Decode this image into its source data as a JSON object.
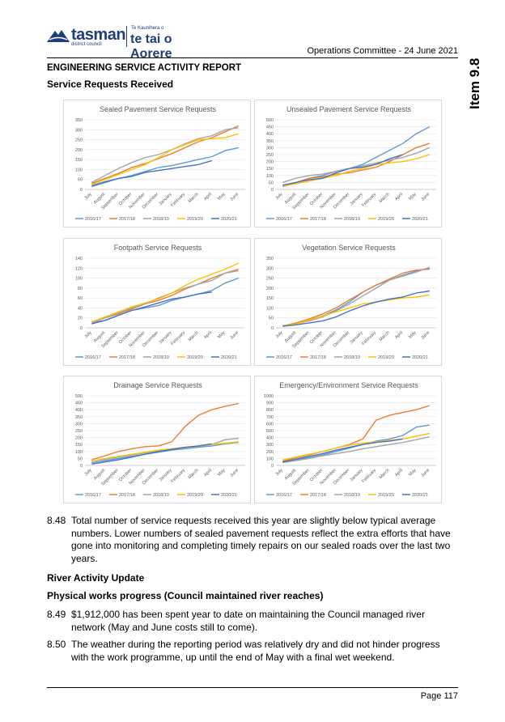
{
  "header": {
    "logo_name": "tasman",
    "logo_subtitle": "district council",
    "logo_maori_small": "Te Kaunihera o",
    "logo_maori": "te tai o Aorere",
    "meeting": "Operations Committee - 24 June 2021",
    "item": "Item 9.8"
  },
  "report_title": "ENGINEERING SERVICE ACTIVITY REPORT",
  "section_title": "Service Requests Received",
  "series_colors": {
    "2016/17": "#5b9bd5",
    "2017/18": "#ed7d31",
    "2018/19": "#a5a5a5",
    "2019/20": "#ffc000",
    "2020/21": "#4472c4"
  },
  "chart_data": [
    {
      "type": "line",
      "title": "Sealed Pavement Service Requests",
      "categories": [
        "July",
        "August",
        "September",
        "October",
        "November",
        "December",
        "January",
        "February",
        "March",
        "April",
        "May",
        "June"
      ],
      "ylim": [
        0,
        350
      ],
      "yticks": [
        0,
        50,
        100,
        150,
        200,
        250,
        300,
        350
      ],
      "series": [
        {
          "name": "2016/17",
          "values": [
            20,
            40,
            55,
            70,
            90,
            110,
            120,
            135,
            150,
            165,
            195,
            210
          ]
        },
        {
          "name": "2017/18",
          "values": [
            30,
            55,
            80,
            110,
            130,
            155,
            180,
            210,
            240,
            260,
            290,
            320
          ]
        },
        {
          "name": "2018/19",
          "values": [
            35,
            70,
            105,
            135,
            160,
            175,
            200,
            230,
            255,
            270,
            300,
            310
          ]
        },
        {
          "name": "2019/20",
          "values": [
            25,
            50,
            75,
            100,
            125,
            160,
            200,
            225,
            250,
            255,
            260,
            280
          ]
        },
        {
          "name": "2020/21",
          "values": [
            15,
            35,
            55,
            65,
            85,
            95,
            105,
            115,
            125,
            145,
            null,
            null
          ]
        }
      ]
    },
    {
      "type": "line",
      "title": "Unsealed Pavement Service Requests",
      "categories": [
        "July",
        "August",
        "September",
        "October",
        "November",
        "December",
        "January",
        "February",
        "March",
        "April",
        "May",
        "June"
      ],
      "ylim": [
        0,
        500
      ],
      "yticks": [
        0,
        50,
        100,
        150,
        200,
        250,
        300,
        350,
        400,
        450,
        500
      ],
      "series": [
        {
          "name": "2016/17",
          "values": [
            30,
            50,
            80,
            100,
            130,
            150,
            180,
            230,
            280,
            330,
            400,
            450
          ]
        },
        {
          "name": "2017/18",
          "values": [
            20,
            50,
            80,
            90,
            110,
            120,
            140,
            160,
            200,
            250,
            300,
            330
          ]
        },
        {
          "name": "2018/19",
          "values": [
            50,
            80,
            100,
            110,
            130,
            150,
            170,
            190,
            210,
            230,
            260,
            300
          ]
        },
        {
          "name": "2019/20",
          "values": [
            25,
            40,
            60,
            80,
            100,
            130,
            150,
            180,
            190,
            200,
            220,
            250
          ]
        },
        {
          "name": "2020/21",
          "values": [
            30,
            50,
            70,
            80,
            120,
            150,
            160,
            180,
            220,
            250,
            null,
            null
          ]
        }
      ]
    },
    {
      "type": "line",
      "title": "Footpath Service Requests",
      "categories": [
        "July",
        "August",
        "September",
        "October",
        "November",
        "December",
        "January",
        "February",
        "March",
        "April",
        "May",
        "June"
      ],
      "ylim": [
        0,
        140
      ],
      "yticks": [
        0,
        20,
        40,
        60,
        80,
        100,
        120,
        140
      ],
      "series": [
        {
          "name": "2016/17",
          "values": [
            10,
            15,
            25,
            35,
            40,
            45,
            55,
            62,
            68,
            75,
            90,
            100
          ]
        },
        {
          "name": "2017/18",
          "values": [
            12,
            20,
            28,
            38,
            48,
            55,
            65,
            78,
            88,
            100,
            110,
            118
          ]
        },
        {
          "name": "2018/19",
          "values": [
            10,
            20,
            30,
            40,
            48,
            60,
            70,
            80,
            88,
            95,
            110,
            115
          ]
        },
        {
          "name": "2019/20",
          "values": [
            12,
            22,
            32,
            42,
            50,
            58,
            70,
            85,
            98,
            108,
            118,
            130
          ]
        },
        {
          "name": "2020/21",
          "values": [
            8,
            15,
            25,
            35,
            42,
            50,
            58,
            62,
            68,
            72,
            null,
            null
          ]
        }
      ]
    },
    {
      "type": "line",
      "title": "Vegetation Service Requests",
      "categories": [
        "July",
        "August",
        "September",
        "October",
        "November",
        "December",
        "January",
        "February",
        "March",
        "April",
        "May",
        "June"
      ],
      "ylim": [
        0,
        350
      ],
      "yticks": [
        0,
        50,
        100,
        150,
        200,
        250,
        300,
        350
      ],
      "series": [
        {
          "name": "2016/17",
          "values": [
            10,
            20,
            40,
            60,
            90,
            130,
            180,
            215,
            240,
            265,
            285,
            300
          ]
        },
        {
          "name": "2017/18",
          "values": [
            10,
            25,
            45,
            70,
            100,
            140,
            180,
            215,
            245,
            275,
            290,
            295
          ]
        },
        {
          "name": "2018/19",
          "values": [
            10,
            20,
            35,
            55,
            85,
            120,
            160,
            200,
            240,
            260,
            280,
            305
          ]
        },
        {
          "name": "2019/20",
          "values": [
            10,
            20,
            40,
            60,
            80,
            100,
            120,
            130,
            140,
            150,
            155,
            165
          ]
        },
        {
          "name": "2020/21",
          "values": [
            8,
            15,
            25,
            35,
            55,
            85,
            110,
            130,
            145,
            155,
            175,
            185
          ]
        }
      ]
    },
    {
      "type": "line",
      "title": "Drainage Service Requests",
      "categories": [
        "July",
        "August",
        "September",
        "October",
        "November",
        "December",
        "January",
        "February",
        "March",
        "April",
        "May",
        "June"
      ],
      "ylim": [
        0,
        500
      ],
      "yticks": [
        0,
        50,
        100,
        150,
        200,
        250,
        300,
        350,
        400,
        450,
        500
      ],
      "series": [
        {
          "name": "2016/17",
          "values": [
            20,
            35,
            50,
            65,
            80,
            95,
            110,
            120,
            130,
            140,
            155,
            165
          ]
        },
        {
          "name": "2017/18",
          "values": [
            40,
            70,
            100,
            120,
            135,
            140,
            170,
            280,
            360,
            400,
            425,
            445
          ]
        },
        {
          "name": "2018/19",
          "values": [
            30,
            45,
            60,
            75,
            90,
            105,
            115,
            125,
            135,
            150,
            185,
            195
          ]
        },
        {
          "name": "2019/20",
          "values": [
            30,
            50,
            65,
            80,
            95,
            110,
            120,
            130,
            140,
            150,
            160,
            170
          ]
        },
        {
          "name": "2020/21",
          "values": [
            10,
            25,
            40,
            60,
            80,
            100,
            115,
            130,
            140,
            155,
            null,
            null
          ]
        }
      ]
    },
    {
      "type": "line",
      "title": "Emergency/Environment Service Requests",
      "categories": [
        "July",
        "August",
        "September",
        "October",
        "November",
        "December",
        "January",
        "February",
        "March",
        "April",
        "May",
        "June"
      ],
      "ylim": [
        0,
        1000
      ],
      "yticks": [
        0,
        100,
        200,
        300,
        400,
        500,
        600,
        700,
        800,
        900,
        1000
      ],
      "series": [
        {
          "name": "2016/17",
          "values": [
            50,
            80,
            110,
            150,
            200,
            250,
            300,
            350,
            380,
            430,
            550,
            580
          ]
        },
        {
          "name": "2017/18",
          "values": [
            60,
            110,
            150,
            200,
            250,
            300,
            380,
            650,
            720,
            760,
            800,
            860
          ]
        },
        {
          "name": "2018/19",
          "values": [
            40,
            70,
            100,
            140,
            170,
            200,
            240,
            270,
            300,
            330,
            370,
            410
          ]
        },
        {
          "name": "2019/20",
          "values": [
            80,
            120,
            160,
            200,
            250,
            290,
            320,
            340,
            360,
            380,
            420,
            460
          ]
        },
        {
          "name": "2020/21",
          "values": [
            50,
            90,
            130,
            170,
            220,
            260,
            300,
            330,
            350,
            380,
            null,
            null
          ]
        }
      ]
    }
  ],
  "paragraphs": {
    "p448_num": "8.48",
    "p448": "Total number of service requests received this year are slightly below typical average numbers.  Lower numbers of sealed pavement requests reflect the extra efforts that have gone into monitoring and completing timely repairs on our sealed roads over the last two years.",
    "river_title": "River Activity Update",
    "physical_title": "Physical works progress (Council maintained river reaches)",
    "p449_num": "8.49",
    "p449": "$1,912,000 has been spent year to date on maintaining the Council managed river network (May and June costs still to come).",
    "p450_num": "8.50",
    "p450": "The weather during the reporting period was relatively dry and did not hinder progress with the work programme, up until the end of May with a final wet weekend."
  },
  "footer": {
    "page": "Page 117"
  }
}
